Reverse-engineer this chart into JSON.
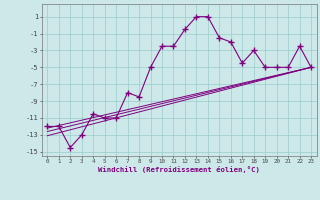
{
  "xlabel": "Windchill (Refroidissement éolien,°C)",
  "bg_color": "#cce8e8",
  "line_color": "#800080",
  "grid_color": "#99cccc",
  "xlim": [
    -0.5,
    23.5
  ],
  "ylim": [
    -15.5,
    2.5
  ],
  "xticks": [
    0,
    1,
    2,
    3,
    4,
    5,
    6,
    7,
    8,
    9,
    10,
    11,
    12,
    13,
    14,
    15,
    16,
    17,
    18,
    19,
    20,
    21,
    22,
    23
  ],
  "yticks": [
    1,
    -1,
    -3,
    -5,
    -7,
    -9,
    -11,
    -13,
    -15
  ],
  "line1_x": [
    0,
    1,
    2,
    3,
    4,
    5,
    6,
    7,
    8,
    9,
    10,
    11,
    12,
    13,
    14,
    15,
    16,
    17,
    18,
    19,
    20,
    21,
    22,
    23
  ],
  "line1_y": [
    -12,
    -12,
    -14.5,
    -13,
    -10.5,
    -11,
    -11,
    -8,
    -8.5,
    -5,
    -2.5,
    -2.5,
    -0.5,
    1,
    1,
    -1.5,
    -2,
    -4.5,
    -3,
    -5,
    -5,
    -5,
    -2.5,
    -5
  ],
  "line2_x": [
    0,
    23
  ],
  "line2_y": [
    -12.2,
    -5.0
  ],
  "line3_x": [
    0,
    23
  ],
  "line3_y": [
    -12.6,
    -5.0
  ],
  "line4_x": [
    0,
    23
  ],
  "line4_y": [
    -13.1,
    -5.0
  ]
}
